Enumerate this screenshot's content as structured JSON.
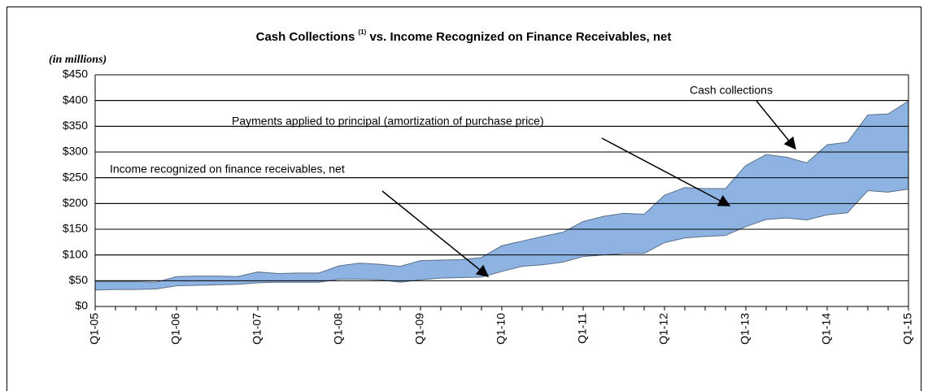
{
  "chart_data": {
    "type": "area",
    "title_parts": [
      "Cash Collections",
      "(1)",
      "vs. Income Recognized on Finance Receivables, net"
    ],
    "subtitle": "(in millions)",
    "categories": [
      "Q1-05",
      null,
      null,
      null,
      "Q1-06",
      null,
      null,
      null,
      "Q1-07",
      null,
      null,
      null,
      "Q1-08",
      null,
      null,
      null,
      "Q1-09",
      null,
      null,
      null,
      "Q1-10",
      null,
      null,
      null,
      "Q1-11",
      null,
      null,
      null,
      "Q1-12",
      null,
      null,
      null,
      "Q1-13",
      null,
      null,
      null,
      "Q1-14",
      null,
      null,
      null,
      "Q1-15"
    ],
    "series": [
      {
        "color": "#8db3e2",
        "values": [
          48,
          48,
          48,
          47,
          58,
          59,
          59,
          58,
          67,
          64,
          65,
          65,
          79,
          84,
          82,
          78,
          89,
          90,
          91,
          95,
          118,
          127,
          136,
          144,
          165,
          175,
          181,
          179,
          216,
          231,
          229,
          229,
          274,
          295,
          290,
          279,
          314,
          319,
          372,
          374,
          399
        ]
      },
      {
        "color": "#ffffff",
        "values": [
          32,
          33,
          33,
          34,
          40,
          41,
          42,
          43,
          46,
          47,
          47,
          47,
          53,
          53,
          52,
          47,
          52,
          55,
          56,
          57,
          68,
          78,
          81,
          86,
          97,
          100,
          103,
          103,
          124,
          133,
          136,
          138,
          155,
          169,
          172,
          168,
          178,
          182,
          225,
          222,
          228
        ]
      }
    ],
    "ylim": [
      0,
      450
    ],
    "yticks": [
      {
        "value": 0,
        "label": "$0"
      },
      {
        "value": 50,
        "label": "$50"
      },
      {
        "value": 100,
        "label": "$100"
      },
      {
        "value": 150,
        "label": "$150"
      },
      {
        "value": 200,
        "label": "$200"
      },
      {
        "value": 250,
        "label": "$250"
      },
      {
        "value": 300,
        "label": "$300"
      },
      {
        "value": 350,
        "label": "$350"
      },
      {
        "value": 400,
        "label": "$400"
      },
      {
        "value": 450,
        "label": "$450"
      }
    ],
    "grid": true,
    "annotations": [
      "Cash collections",
      "Payments applied to principal (amortization of purchase price)",
      "Income recognized on finance receivables, net"
    ]
  }
}
